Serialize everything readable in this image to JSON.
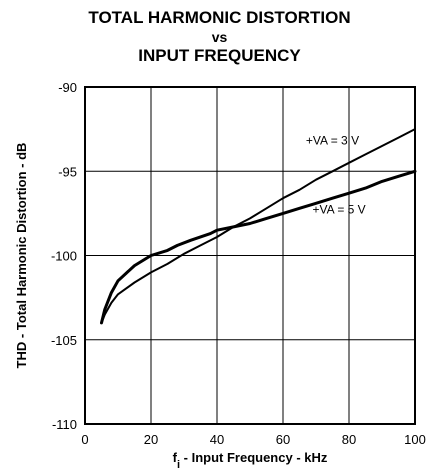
{
  "chart_data": {
    "type": "line",
    "title": [
      "TOTAL HARMONIC DISTORTION",
      "vs",
      "INPUT FREQUENCY"
    ],
    "xlabel_prefix": "f",
    "xlabel_sub": "i",
    "xlabel_rest": " - Input Frequency - kHz",
    "ylabel": "THD - Total Harmonic Distortion - dB",
    "xlim": [
      0,
      100
    ],
    "ylim": [
      -110,
      -90
    ],
    "x_ticks": [
      0,
      20,
      40,
      60,
      80,
      100
    ],
    "x_tick_labels": [
      "0",
      "20",
      "40",
      "60",
      "80",
      "100"
    ],
    "y_ticks": [
      -90,
      -95,
      -100,
      -105,
      -110
    ],
    "y_tick_labels": [
      "-90",
      "-95",
      "-100",
      "-105",
      "-110"
    ],
    "grid": true,
    "series": [
      {
        "name": "+VA = 3 V",
        "x": [
          5,
          6,
          8,
          10,
          15,
          20,
          25,
          30,
          35,
          40,
          45,
          50,
          55,
          60,
          65,
          70,
          75,
          80,
          85,
          90,
          95,
          100
        ],
        "y": [
          -104.0,
          -103.5,
          -102.8,
          -102.3,
          -101.6,
          -101.0,
          -100.5,
          -99.9,
          -99.4,
          -98.9,
          -98.3,
          -97.8,
          -97.2,
          -96.6,
          -96.1,
          -95.5,
          -95.0,
          -94.5,
          -94.0,
          -93.5,
          -93.0,
          -92.5
        ]
      },
      {
        "name": "+VA = 5 V",
        "x": [
          5,
          6,
          8,
          10,
          15,
          20,
          25,
          28,
          32,
          38,
          40,
          45,
          50,
          55,
          60,
          65,
          70,
          75,
          80,
          85,
          90,
          95,
          100
        ],
        "y": [
          -104.0,
          -103.2,
          -102.2,
          -101.5,
          -100.6,
          -100.0,
          -99.7,
          -99.4,
          -99.1,
          -98.7,
          -98.5,
          -98.3,
          -98.1,
          -97.8,
          -97.5,
          -97.2,
          -96.9,
          -96.6,
          -96.3,
          -96.0,
          -95.6,
          -95.3,
          -95.0
        ]
      }
    ],
    "annotations": [
      {
        "text": "+VA = 3 V",
        "x": 75,
        "y": -93.4
      },
      {
        "text": "+VA = 5 V",
        "x": 77,
        "y": -97.5
      }
    ]
  }
}
